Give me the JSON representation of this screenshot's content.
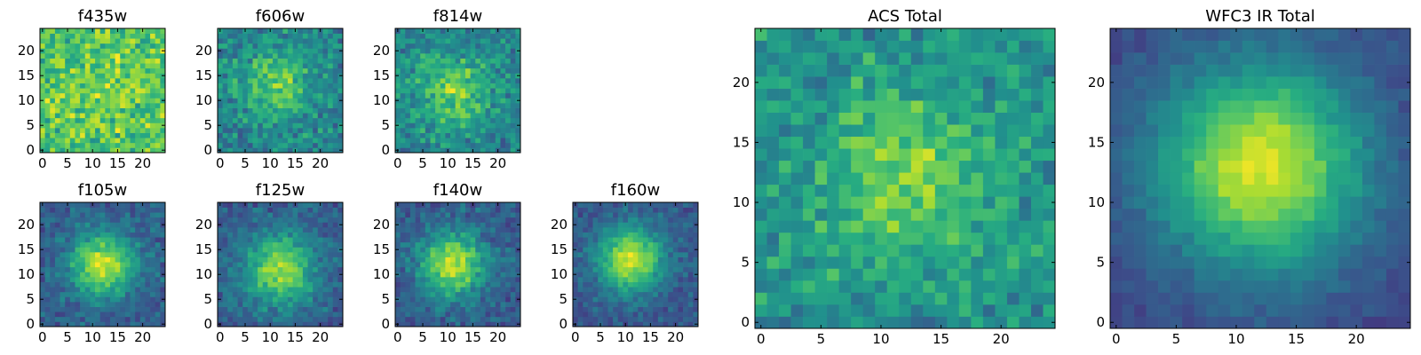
{
  "chart_data": [
    {
      "type": "heatmap",
      "title": "f435w",
      "x_ticks": [
        "0",
        "5",
        "10",
        "15",
        "20"
      ],
      "y_ticks": [
        "0",
        "5",
        "10",
        "15",
        "20"
      ],
      "xlim": [
        0,
        25
      ],
      "ylim": [
        0,
        25
      ],
      "colormap": "viridis",
      "grid": false,
      "image": {
        "size": 25,
        "center": [
          12,
          12
        ],
        "sigma": 8,
        "peak": 0.05,
        "base": 0.72,
        "noise": 0.26,
        "seed": 11
      }
    },
    {
      "type": "heatmap",
      "title": "f606w",
      "x_ticks": [
        "0",
        "5",
        "10",
        "15",
        "20"
      ],
      "y_ticks": [
        "0",
        "5",
        "10",
        "15",
        "20"
      ],
      "xlim": [
        0,
        25
      ],
      "ylim": [
        0,
        25
      ],
      "colormap": "viridis",
      "grid": false,
      "image": {
        "size": 25,
        "center": [
          11,
          13
        ],
        "sigma": 5,
        "peak": 0.3,
        "base": 0.45,
        "noise": 0.22,
        "seed": 23
      }
    },
    {
      "type": "heatmap",
      "title": "f814w",
      "x_ticks": [
        "0",
        "5",
        "10",
        "15",
        "20"
      ],
      "y_ticks": [
        "0",
        "5",
        "10",
        "15",
        "20"
      ],
      "xlim": [
        0,
        25
      ],
      "ylim": [
        0,
        25
      ],
      "colormap": "viridis",
      "grid": false,
      "image": {
        "size": 25,
        "center": [
          11,
          12
        ],
        "sigma": 5,
        "peak": 0.35,
        "base": 0.45,
        "noise": 0.22,
        "seed": 37
      }
    },
    {
      "type": "heatmap",
      "title": "f105w",
      "x_ticks": [
        "0",
        "5",
        "10",
        "15",
        "20"
      ],
      "y_ticks": [
        "0",
        "5",
        "10",
        "15",
        "20"
      ],
      "xlim": [
        0,
        25
      ],
      "ylim": [
        0,
        25
      ],
      "colormap": "viridis",
      "grid": false,
      "image": {
        "size": 25,
        "center": [
          12,
          12
        ],
        "sigma": 4.5,
        "peak": 0.6,
        "base": 0.3,
        "noise": 0.15,
        "seed": 41
      }
    },
    {
      "type": "heatmap",
      "title": "f125w",
      "x_ticks": [
        "0",
        "5",
        "10",
        "15",
        "20"
      ],
      "y_ticks": [
        "0",
        "5",
        "10",
        "15",
        "20"
      ],
      "xlim": [
        0,
        25
      ],
      "ylim": [
        0,
        25
      ],
      "colormap": "viridis",
      "grid": false,
      "image": {
        "size": 25,
        "center": [
          12,
          11
        ],
        "sigma": 5,
        "peak": 0.55,
        "base": 0.3,
        "noise": 0.16,
        "seed": 53
      }
    },
    {
      "type": "heatmap",
      "title": "f140w",
      "x_ticks": [
        "0",
        "5",
        "10",
        "15",
        "20"
      ],
      "y_ticks": [
        "0",
        "5",
        "10",
        "15",
        "20"
      ],
      "xlim": [
        0,
        25
      ],
      "ylim": [
        0,
        25
      ],
      "colormap": "viridis",
      "grid": false,
      "image": {
        "size": 25,
        "center": [
          11,
          12
        ],
        "sigma": 4.5,
        "peak": 0.6,
        "base": 0.3,
        "noise": 0.15,
        "seed": 67
      }
    },
    {
      "type": "heatmap",
      "title": "f160w",
      "x_ticks": [
        "0",
        "5",
        "10",
        "15",
        "20"
      ],
      "y_ticks": [
        "0",
        "5",
        "10",
        "15",
        "20"
      ],
      "xlim": [
        0,
        25
      ],
      "ylim": [
        0,
        25
      ],
      "colormap": "viridis",
      "grid": false,
      "image": {
        "size": 25,
        "center": [
          11,
          13
        ],
        "sigma": 4.5,
        "peak": 0.65,
        "base": 0.28,
        "noise": 0.13,
        "seed": 79
      }
    },
    {
      "type": "heatmap",
      "title": "ACS Total",
      "x_ticks": [
        "0",
        "5",
        "10",
        "15",
        "20"
      ],
      "y_ticks": [
        "0",
        "5",
        "10",
        "15",
        "20"
      ],
      "xlim": [
        0,
        25
      ],
      "ylim": [
        0,
        25
      ],
      "colormap": "viridis",
      "grid": false,
      "image": {
        "size": 25,
        "center": [
          12,
          12
        ],
        "sigma": 5,
        "peak": 0.3,
        "base": 0.5,
        "noise": 0.2,
        "seed": 97
      }
    },
    {
      "type": "heatmap",
      "title": "WFC3 IR Total",
      "x_ticks": [
        "0",
        "5",
        "10",
        "15",
        "20"
      ],
      "y_ticks": [
        "0",
        "5",
        "10",
        "15",
        "20"
      ],
      "xlim": [
        0,
        25
      ],
      "ylim": [
        0,
        25
      ],
      "colormap": "viridis",
      "grid": false,
      "image": {
        "size": 25,
        "center": [
          12,
          13
        ],
        "sigma": 6,
        "peak": 0.72,
        "base": 0.22,
        "noise": 0.07,
        "seed": 101
      }
    }
  ]
}
